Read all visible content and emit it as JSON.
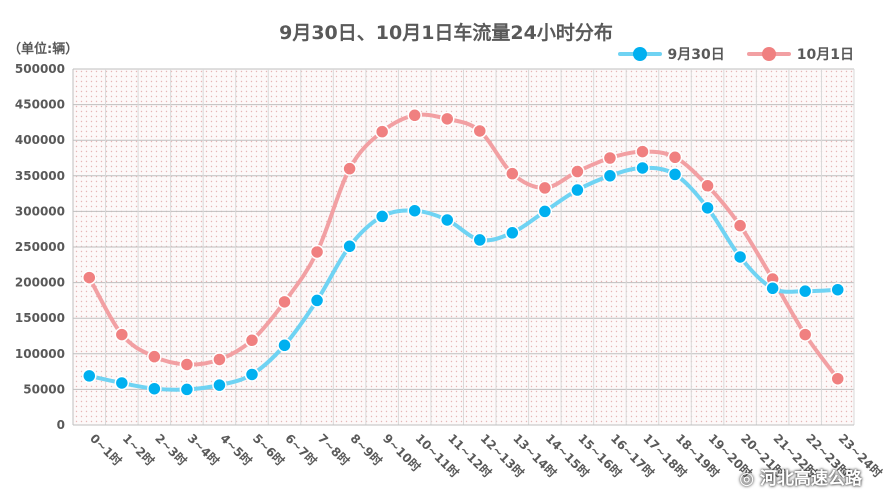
{
  "chart_data": {
    "type": "line",
    "title": "9月30日、10月1日车流量24小时分布",
    "unit_label": "（单位:辆）",
    "xlabel": "",
    "ylabel": "",
    "ylim": [
      0,
      500000
    ],
    "yticks": [
      "0",
      "50000",
      "100000",
      "150000",
      "200000",
      "250000",
      "300000",
      "350000",
      "400000",
      "450000",
      "500000"
    ],
    "grid": true,
    "legend_position": "top-right",
    "categories": [
      "0~1时",
      "1~2时",
      "2~3时",
      "3~4时",
      "4~5时",
      "5~6时",
      "6~7时",
      "7~8时",
      "8~9时",
      "9~10时",
      "10~11时",
      "11~12时",
      "12~13时",
      "13~14时",
      "14~15时",
      "15~16时",
      "16~17时",
      "17~18时",
      "18~19时",
      "19~20时",
      "20~21时",
      "21~22时",
      "22~23时",
      "23~24时"
    ],
    "series": [
      {
        "name": "9月30日",
        "color": "#00b0f0",
        "line_color": "#6fd3f3",
        "values": [
          69000,
          59000,
          51000,
          50000,
          56000,
          71000,
          112000,
          175000,
          251000,
          293000,
          301000,
          288000,
          260000,
          270000,
          300000,
          330000,
          350000,
          361000,
          352000,
          305000,
          236000,
          192000,
          188000,
          190000
        ]
      },
      {
        "name": "10月1日",
        "color": "#f08080",
        "line_color": "#f2a0a3",
        "values": [
          207000,
          127000,
          96000,
          85000,
          92000,
          119000,
          173000,
          243000,
          360000,
          412000,
          435000,
          430000,
          413000,
          353000,
          333000,
          356000,
          375000,
          384000,
          376000,
          336000,
          280000,
          205000,
          127000,
          65000
        ]
      }
    ]
  },
  "watermark": "河北高速公路"
}
